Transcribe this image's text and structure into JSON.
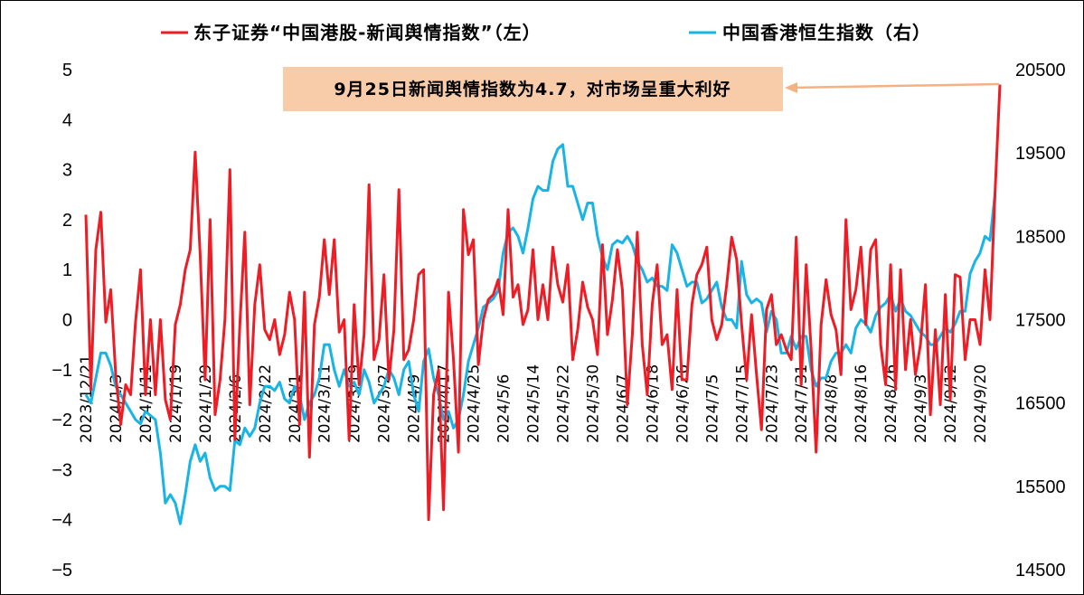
{
  "colors": {
    "red_series": "#ee1c25",
    "blue_series": "#19b4e6",
    "annotation_bg": "#f8cba9",
    "arrow": "#f4b183"
  },
  "legend": {
    "red_label": "东子证券“中国港股-新闻舆情指数”（左）",
    "blue_label": "中国香港恒生指数（右）"
  },
  "annotation": {
    "text": "9月25日新闻舆情指数为4.7，对市场呈重大利好"
  },
  "chart_data": {
    "type": "line",
    "left_axis": {
      "ylim": [
        -5,
        5
      ],
      "ticks": [
        "5",
        "4",
        "3",
        "2",
        "1",
        "0",
        "−1",
        "−2",
        "−3",
        "−4",
        "−5"
      ],
      "tick_values": [
        5,
        4,
        3,
        2,
        1,
        0,
        -1,
        -2,
        -3,
        -4,
        -5
      ]
    },
    "right_axis": {
      "ylim": [
        14500,
        20500
      ],
      "ticks": [
        "20500",
        "19500",
        "18500",
        "17500",
        "16500",
        "15500",
        "14500"
      ],
      "tick_values": [
        20500,
        19500,
        18500,
        17500,
        16500,
        15500,
        14500
      ]
    },
    "x_tick_labels": [
      "2023/12/21",
      "2024/1/3",
      "2024/1/11",
      "2024/1/19",
      "2024/1/29",
      "2024/2/6",
      "2024/2/22",
      "2024/3/1",
      "2024/3/11",
      "2024/3/19",
      "2024/3/27",
      "2024/4/9",
      "2024/4/17",
      "2024/4/25",
      "2024/5/6",
      "2024/5/14",
      "2024/5/22",
      "2024/5/30",
      "2024/6/7",
      "2024/6/18",
      "2024/6/26",
      "2024/7/5",
      "2024/7/15",
      "2024/7/23",
      "2024/7/31",
      "2024/8/8",
      "2024/8/16",
      "2024/8/26",
      "2024/9/3",
      "2024/9/12",
      "2024/9/20"
    ],
    "x_tick_index": [
      0,
      6,
      12,
      18,
      24,
      30,
      36,
      42,
      48,
      54,
      60,
      66,
      72,
      78,
      84,
      90,
      96,
      102,
      108,
      114,
      120,
      126,
      132,
      138,
      144,
      150,
      156,
      162,
      168,
      174,
      180
    ],
    "series": [
      {
        "name": "东子证券“中国港股-新闻舆情指数”（左）",
        "axis": "left",
        "values": [
          2.1,
          -1.4,
          1.4,
          2.15,
          -0.05,
          0.6,
          -1.1,
          -2.1,
          -1.3,
          -1.5,
          -0.05,
          1.0,
          -1.5,
          0.0,
          -1.5,
          0.0,
          -1.6,
          -2.0,
          -0.1,
          0.3,
          1.0,
          1.4,
          3.35,
          1.3,
          -1.2,
          2.0,
          -1.9,
          -1.2,
          0.0,
          3.0,
          -2.4,
          -0.1,
          1.75,
          -1.7,
          0.3,
          1.1,
          -0.2,
          -0.4,
          0.0,
          -0.7,
          -0.3,
          0.55,
          0.0,
          -2.1,
          0.55,
          -2.75,
          -0.1,
          0.45,
          1.6,
          0.5,
          1.6,
          -0.25,
          0.0,
          -2.4,
          0.3,
          -1.3,
          -0.3,
          2.7,
          -0.8,
          -0.4,
          0.9,
          -1.2,
          -0.2,
          2.6,
          -0.8,
          -0.6,
          0.0,
          0.9,
          1.0,
          -4.0,
          -1.5,
          -1.0,
          -3.8,
          0.55,
          -0.8,
          -2.65,
          2.2,
          1.3,
          1.6,
          -0.9,
          0.0,
          0.4,
          0.5,
          0.8,
          0.1,
          2.2,
          0.45,
          0.7,
          -0.1,
          0.2,
          1.4,
          0.0,
          0.7,
          0.0,
          1.45,
          0.7,
          0.35,
          1.1,
          -0.8,
          -0.2,
          0.75,
          0.25,
          0.0,
          -0.7,
          1.5,
          -0.3,
          0.4,
          1.4,
          0.6,
          -1.7,
          -0.3,
          1.75,
          -0.5,
          -1.5,
          0.3,
          1.1,
          -0.5,
          -0.3,
          -1.4,
          0.6,
          -1.2,
          -1.2,
          0.3,
          0.9,
          1.1,
          1.45,
          0.0,
          -0.4,
          -0.1,
          0.7,
          1.65,
          1.2,
          -0.1,
          -1.2,
          0.1,
          -1.1,
          -2.2,
          0.2,
          0.5,
          -0.5,
          -0.3,
          -0.6,
          -0.8,
          1.65,
          -1.3,
          1.1,
          -0.6,
          -2.65,
          -0.1,
          0.8,
          0.1,
          -0.2,
          -1.1,
          2.0,
          0.2,
          0.6,
          1.45,
          -0.1,
          1.4,
          1.6,
          -0.5,
          -1.3,
          1.1,
          -1.4,
          1.0,
          -1.0,
          0.0,
          -1.1,
          -0.5,
          0.7,
          -1.9,
          -0.2,
          -1.7,
          0.5,
          -1.6,
          0.9,
          0.85,
          -0.8,
          0.0,
          0.0,
          -0.5,
          1.0,
          0.0,
          2.5,
          4.7
        ]
      },
      {
        "name": "中国香港恒生指数（右）",
        "axis": "right",
        "values": [
          16600,
          16500,
          16800,
          17100,
          17100,
          16950,
          16700,
          16600,
          16500,
          16400,
          16300,
          16250,
          16400,
          16350,
          16300,
          15900,
          15300,
          15400,
          15300,
          15050,
          15400,
          15800,
          16000,
          15800,
          15900,
          15600,
          15450,
          15500,
          15500,
          15450,
          16050,
          16000,
          16200,
          16100,
          16200,
          16500,
          16700,
          16700,
          16650,
          16750,
          16550,
          16500,
          16700,
          16600,
          16300,
          16500,
          16600,
          16800,
          17200,
          17200,
          16900,
          16700,
          16900,
          16700,
          16750,
          16600,
          16900,
          16750,
          16500,
          16600,
          16700,
          16900,
          16800,
          16600,
          16900,
          17000,
          16600,
          16400,
          17000,
          17150,
          16800,
          16600,
          16300,
          16400,
          16200,
          16300,
          16600,
          17000,
          17200,
          17400,
          17650,
          17700,
          17750,
          17850,
          18300,
          18550,
          18600,
          18500,
          18300,
          18600,
          18950,
          19100,
          19050,
          19050,
          19400,
          19550,
          19600,
          19100,
          19100,
          18900,
          18700,
          18900,
          18900,
          18500,
          18250,
          18100,
          18400,
          18450,
          18420,
          18500,
          18400,
          18200,
          18100,
          17950,
          18000,
          17900,
          17900,
          17850,
          18400,
          18300,
          18100,
          17900,
          17950,
          17950,
          17700,
          17750,
          17850,
          17950,
          17650,
          17500,
          17500,
          17400,
          18200,
          17800,
          17700,
          17750,
          17700,
          17350,
          17600,
          17500,
          17100,
          17100,
          17300,
          17150,
          17300,
          17300,
          16900,
          16700,
          16800,
          16800,
          17000,
          17100,
          17100,
          17200,
          17100,
          17400,
          17500,
          17450,
          17350,
          17550,
          17650,
          17700,
          17800,
          17600,
          17750,
          17600,
          17550,
          17450,
          17350,
          17300,
          17200,
          17200,
          17300,
          17400,
          17350,
          17450,
          17600,
          17600,
          18050,
          18200,
          18300,
          18500,
          18450,
          19000
        ]
      }
    ]
  }
}
